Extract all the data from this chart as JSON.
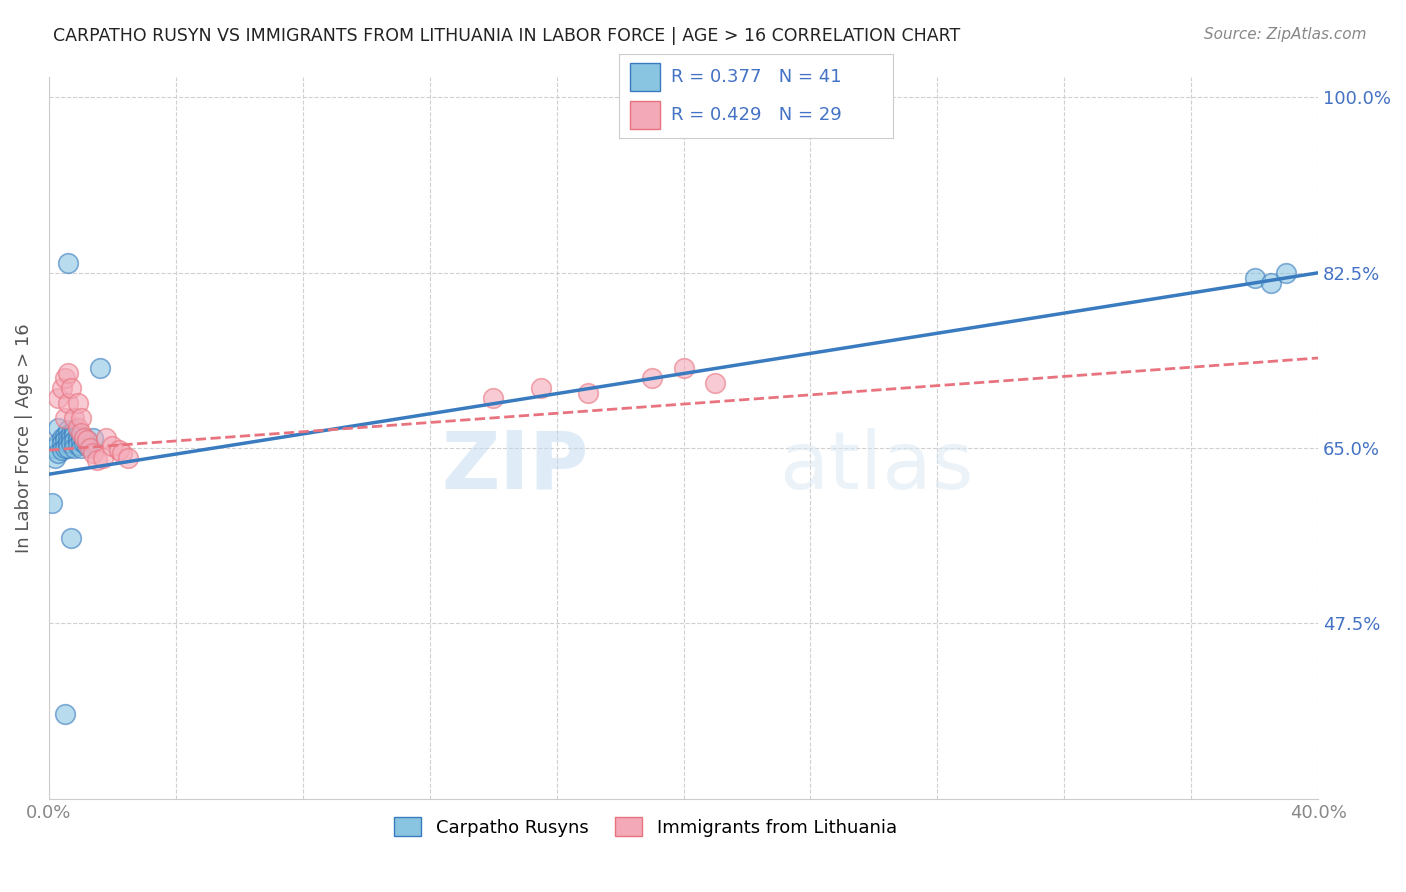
{
  "title": "CARPATHO RUSYN VS IMMIGRANTS FROM LITHUANIA IN LABOR FORCE | AGE > 16 CORRELATION CHART",
  "source": "Source: ZipAtlas.com",
  "ylabel": "In Labor Force | Age > 16",
  "xlim": [
    0.0,
    0.4
  ],
  "ylim": [
    0.3,
    1.02
  ],
  "ytick_labels": [
    "100.0%",
    "82.5%",
    "65.0%",
    "47.5%"
  ],
  "ytick_values": [
    1.0,
    0.825,
    0.65,
    0.475
  ],
  "xtick_values": [
    0.0,
    0.04,
    0.08,
    0.12,
    0.16,
    0.2,
    0.24,
    0.28,
    0.32,
    0.36,
    0.4
  ],
  "blue_color": "#89c4e1",
  "pink_color": "#f4a9b8",
  "blue_line_color": "#3a7bbf",
  "pink_line_color": "#e8737f",
  "legend_blue_label": "R = 0.377   N = 41",
  "legend_pink_label": "R = 0.429   N = 29",
  "carpatho_rusyn_x": [
    0.001,
    0.002,
    0.002,
    0.003,
    0.003,
    0.003,
    0.004,
    0.004,
    0.004,
    0.005,
    0.005,
    0.005,
    0.006,
    0.006,
    0.006,
    0.006,
    0.007,
    0.007,
    0.007,
    0.008,
    0.008,
    0.008,
    0.008,
    0.009,
    0.009,
    0.009,
    0.01,
    0.01,
    0.01,
    0.011,
    0.011,
    0.012,
    0.012,
    0.014,
    0.016,
    0.006,
    0.007,
    0.38,
    0.385,
    0.39,
    0.005
  ],
  "carpatho_rusyn_y": [
    0.595,
    0.65,
    0.64,
    0.67,
    0.655,
    0.645,
    0.66,
    0.655,
    0.648,
    0.662,
    0.658,
    0.65,
    0.668,
    0.66,
    0.655,
    0.65,
    0.665,
    0.66,
    0.655,
    0.668,
    0.663,
    0.657,
    0.65,
    0.663,
    0.658,
    0.653,
    0.662,
    0.657,
    0.65,
    0.66,
    0.655,
    0.658,
    0.652,
    0.66,
    0.73,
    0.835,
    0.56,
    0.82,
    0.815,
    0.825,
    0.385
  ],
  "lithuania_x": [
    0.003,
    0.004,
    0.005,
    0.005,
    0.006,
    0.006,
    0.007,
    0.008,
    0.009,
    0.009,
    0.01,
    0.01,
    0.011,
    0.012,
    0.013,
    0.014,
    0.015,
    0.017,
    0.018,
    0.02,
    0.022,
    0.023,
    0.025,
    0.14,
    0.155,
    0.17,
    0.19,
    0.2,
    0.21
  ],
  "lithuania_y": [
    0.7,
    0.71,
    0.72,
    0.68,
    0.695,
    0.725,
    0.71,
    0.68,
    0.67,
    0.695,
    0.68,
    0.665,
    0.66,
    0.658,
    0.65,
    0.645,
    0.638,
    0.64,
    0.66,
    0.652,
    0.648,
    0.645,
    0.64,
    0.7,
    0.71,
    0.705,
    0.72,
    0.73,
    0.715
  ],
  "blue_trend_x": [
    0.0,
    0.4
  ],
  "blue_trend_y": [
    0.624,
    0.825
  ],
  "pink_trend_x": [
    0.0,
    0.4
  ],
  "pink_trend_y": [
    0.648,
    0.74
  ],
  "watermark_zip": "ZIP",
  "watermark_atlas": "atlas",
  "background_color": "#ffffff",
  "grid_color": "#d0d0d0",
  "title_color": "#222222",
  "right_tick_color": "#4472c4",
  "watermark_color": "#c8ddf0"
}
